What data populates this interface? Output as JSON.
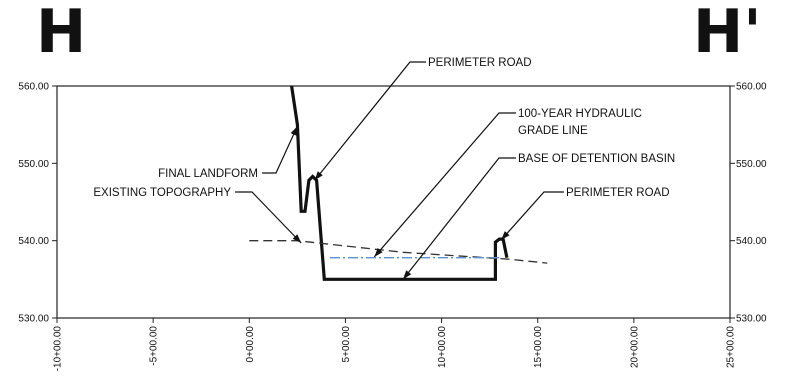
{
  "section": {
    "left_label": "H",
    "right_label": "H'"
  },
  "chart_data": {
    "type": "line",
    "title": "",
    "xlabel": "",
    "ylabel": "",
    "xlim": [
      -10,
      25
    ],
    "ylim": [
      530,
      560
    ],
    "grid": false,
    "x_ticks": [
      {
        "value": -10,
        "label": "-10+00.00"
      },
      {
        "value": -5,
        "label": "-5+00.00"
      },
      {
        "value": 0,
        "label": "0+00.00"
      },
      {
        "value": 5,
        "label": "5+00.00"
      },
      {
        "value": 10,
        "label": "10+00.00"
      },
      {
        "value": 15,
        "label": "15+00.00"
      },
      {
        "value": 20,
        "label": "20+00.00"
      },
      {
        "value": 25,
        "label": "25+00.00"
      }
    ],
    "y_ticks": [
      {
        "value": 530,
        "label": "530.00"
      },
      {
        "value": 540,
        "label": "540.00"
      },
      {
        "value": 550,
        "label": "550.00"
      },
      {
        "value": 560,
        "label": "560.00"
      }
    ],
    "series": [
      {
        "key": "final_landform",
        "style": "solid",
        "color": "#111111",
        "x": [
          2.2,
          2.5,
          2.7,
          2.9,
          3.1,
          3.3,
          3.5,
          3.9,
          3.9,
          12.8,
          12.8,
          13.0,
          13.2,
          13.4
        ],
        "y": [
          560,
          555,
          543.8,
          543.8,
          547.8,
          548.3,
          547.8,
          535.0,
          535.0,
          535.0,
          539.8,
          540.2,
          540.2,
          537.8
        ]
      },
      {
        "key": "existing_topography",
        "style": "dashed",
        "color": "#333333",
        "x": [
          0.0,
          2.5,
          8.0,
          13.5,
          15.5
        ],
        "y": [
          540.0,
          540.0,
          538.5,
          537.6,
          537.1
        ]
      },
      {
        "key": "hydraulic_grade_line",
        "style": "dashdot",
        "color": "#5b8fd6",
        "x": [
          4.2,
          13.0
        ],
        "y": [
          537.8,
          537.8
        ]
      }
    ],
    "annotations": [
      {
        "key": "perimeter_road_top",
        "text": "PERIMETER ROAD",
        "points_to": [
          3.4,
          547.8
        ]
      },
      {
        "key": "hgl",
        "text": [
          "100-YEAR HYDRAULIC",
          "GRADE LINE"
        ],
        "points_to": [
          6.5,
          537.9
        ]
      },
      {
        "key": "final_landform",
        "text": "FINAL LANDFORM",
        "points_to": [
          2.5,
          554.8
        ]
      },
      {
        "key": "base_basin",
        "text": "BASE OF DETENTION BASIN",
        "points_to": [
          8.0,
          535.0
        ]
      },
      {
        "key": "existing_topo",
        "text": "EXISTING TOPOGRAPHY",
        "points_to": [
          2.7,
          539.7
        ]
      },
      {
        "key": "perimeter_road_right",
        "text": "PERIMETER ROAD",
        "points_to": [
          13.1,
          540.1
        ]
      }
    ]
  }
}
